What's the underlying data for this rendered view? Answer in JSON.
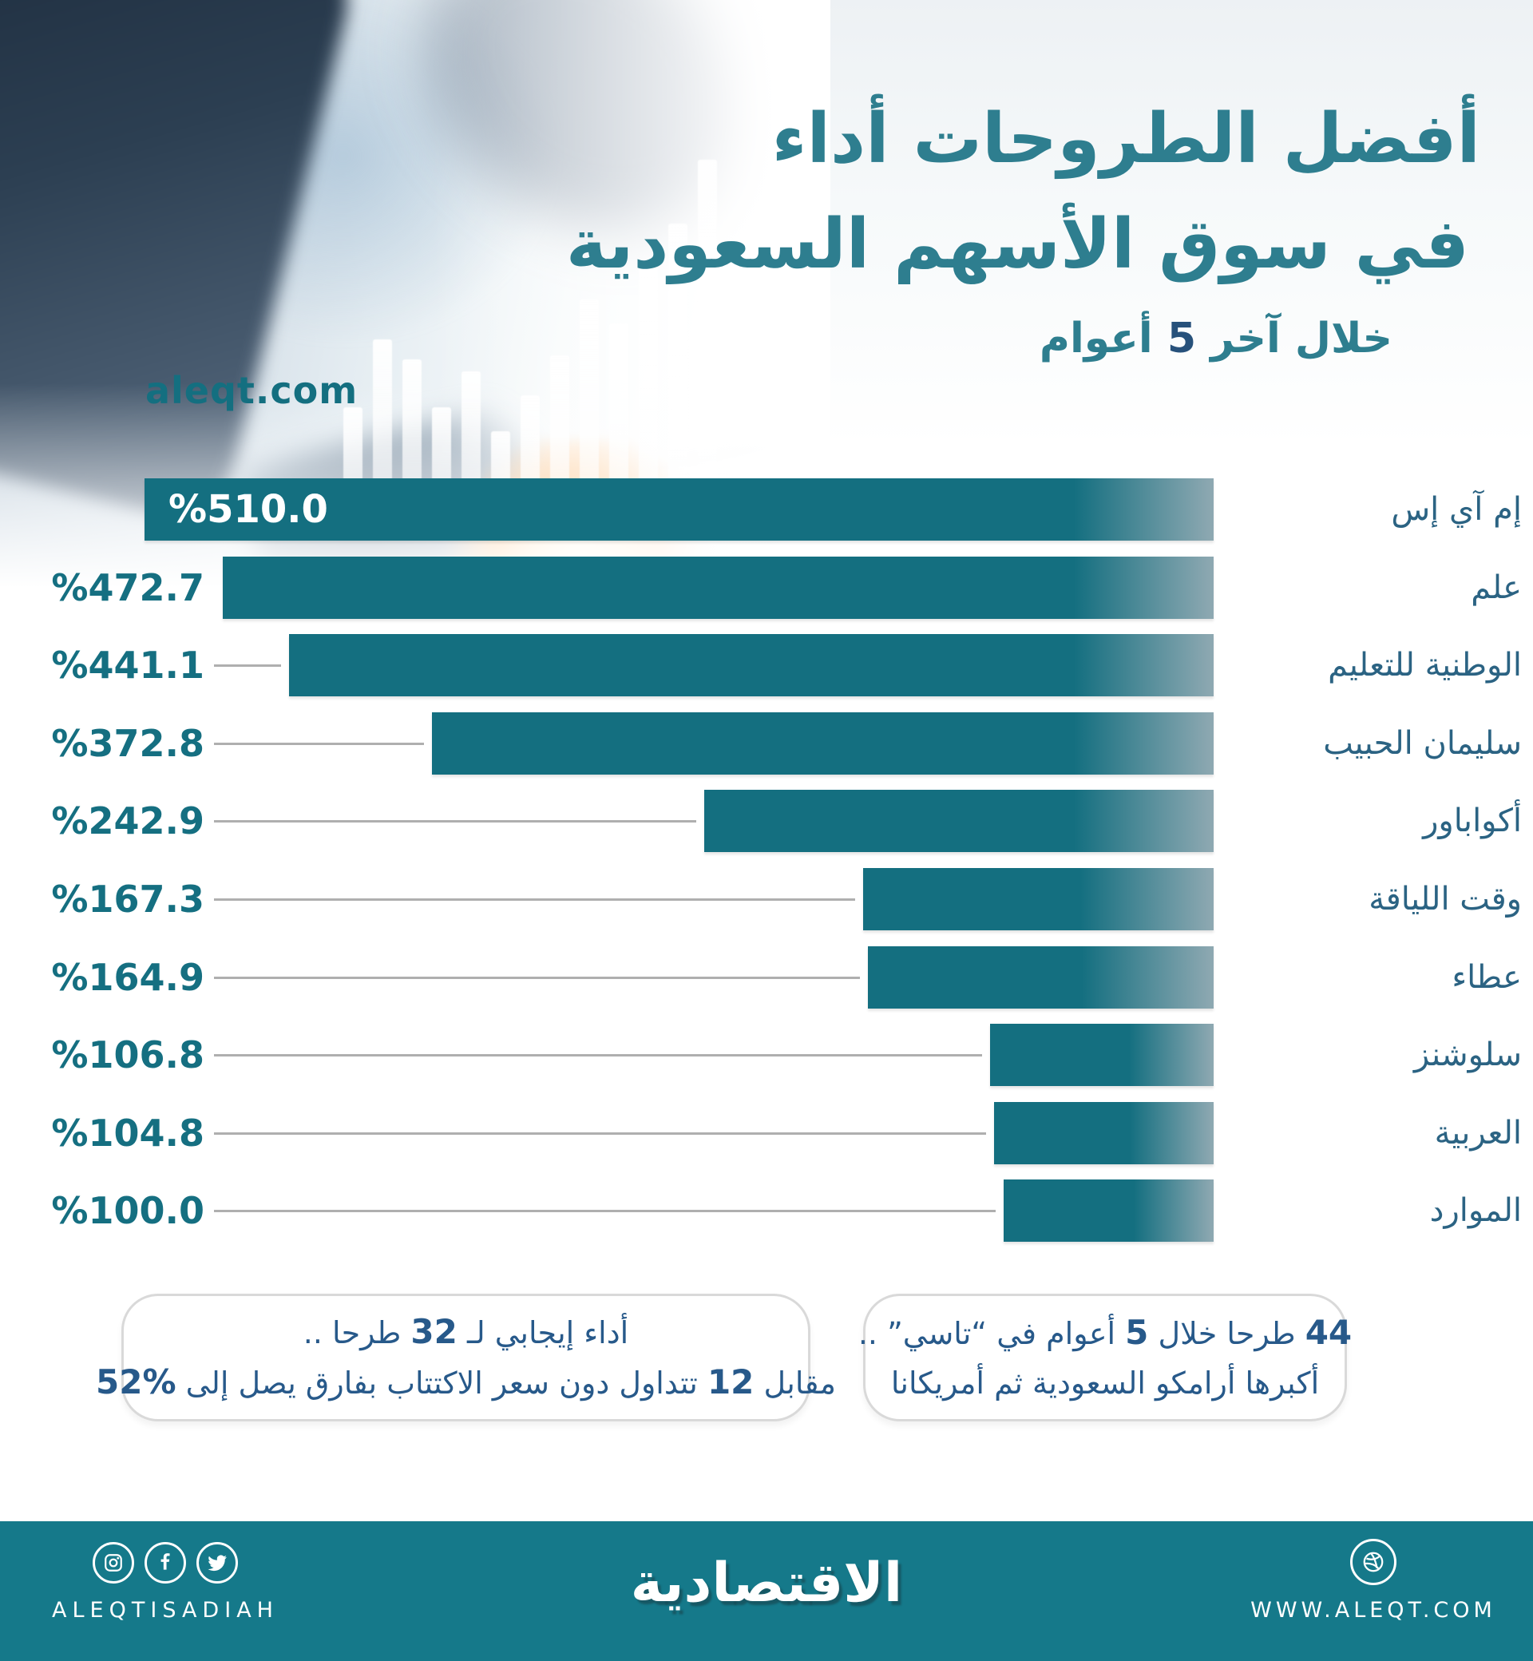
{
  "header": {
    "title_line1": "أفضل الطروحات أداء",
    "title_line2": "في سوق الأسهم السعودية",
    "subtitle": "خلال آخر 5 أعوام",
    "website": "aleqt.com"
  },
  "chart_data": {
    "type": "bar",
    "orientation": "horizontal_rtl",
    "title": "أفضل الطروحات أداء في سوق الأسهم السعودية خلال آخر 5 أعوام",
    "unit": "%",
    "max_value": 510.0,
    "categories": [
      "إم آي إس",
      "علم",
      "الوطنية للتعليم",
      "سليمان الحبيب",
      "أكواباور",
      "وقت اللياقة",
      "عطاء",
      "سلوشنز",
      "العربية",
      "الموارد"
    ],
    "values": [
      510.0,
      472.7,
      441.1,
      372.8,
      242.9,
      167.3,
      164.9,
      106.8,
      104.8,
      100.0
    ],
    "value_labels": [
      "%510.0",
      "%472.7",
      "%441.1",
      "%372.8",
      "%242.9",
      "%167.3",
      "%164.9",
      "%106.8",
      "%104.8",
      "%100.0"
    ],
    "legend": null,
    "grid": false
  },
  "callouts": {
    "right_box": {
      "line1": "44 طرحا خلال 5 أعوام في “تاسي” ..",
      "line2": "أكبرها أرامكو السعودية ثم أمريكانا"
    },
    "left_box": {
      "line1": "أداء إيجابي لـ 32 طرحا ..",
      "line2": "مقابل 12 تتداول دون سعر الاكتتاب بفارق يصل إلى %52"
    }
  },
  "footer": {
    "social_handle": "ALEQTISADIAH",
    "logo": "الاقتصادية",
    "website": "WWW.ALEQT.COM",
    "icons": [
      "instagram-icon",
      "facebook-icon",
      "twitter-icon",
      "dribbble-icon"
    ]
  },
  "colors": {
    "bar_teal": "#146F80",
    "bar_fade": "#8FA9B2",
    "title_teal": "#2E7E8F",
    "value_teal": "#156F81",
    "label_blue": "#2B6383",
    "callout_blue": "#27598A",
    "footer_teal": "#15798A",
    "connector_gray": "#AFAFAF"
  }
}
